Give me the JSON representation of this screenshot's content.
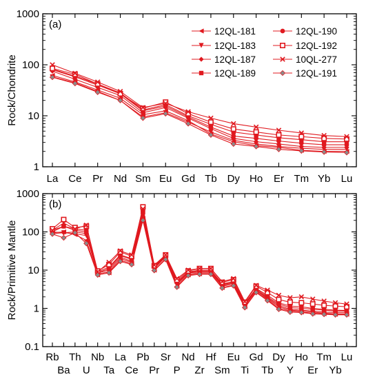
{
  "figure": {
    "chart_data": [
      {
        "type": "line",
        "panel_label": "(a)",
        "xlabel": "",
        "ylabel": "Rock/Chondrite",
        "yscale": "log",
        "ylim": [
          1,
          1000
        ],
        "yticks": [
          "1",
          "10",
          "100",
          "1000"
        ],
        "categories": [
          "La",
          "Ce",
          "Pr",
          "Nd",
          "Sm",
          "Eu",
          "Gd",
          "Tb",
          "Dy",
          "Ho",
          "Er",
          "Tm",
          "Yb",
          "Lu"
        ],
        "line_color": "#e0191f",
        "legend_position": "top-right",
        "series": [
          {
            "name": "12QL-181",
            "marker": "triangle-left",
            "values": [
              62,
              46,
              32,
              22,
              10.5,
              12.5,
              8.0,
              4.4,
              3.1,
              2.6,
              2.4,
              2.1,
              2.0,
              2.0
            ]
          },
          {
            "name": "12QL-183",
            "marker": "triangle-down",
            "values": [
              58,
              44,
              30,
              20,
              9.5,
              11.5,
              7.5,
              4.8,
              3.3,
              2.8,
              2.5,
              2.3,
              2.2,
              2.2
            ]
          },
          {
            "name": "12QL-187",
            "marker": "diamond",
            "values": [
              75,
              52,
              36,
              25,
              11.5,
              14.5,
              9.0,
              5.6,
              3.6,
              3.1,
              2.8,
              2.5,
              2.4,
              2.4
            ]
          },
          {
            "name": "12QL-189",
            "marker": "square",
            "values": [
              82,
              60,
              42,
              28,
              13,
              16.5,
              10.0,
              6.8,
              4.8,
              4.2,
              3.7,
              3.4,
              3.1,
              3.1
            ]
          },
          {
            "name": "12QL-190",
            "marker": "circle",
            "values": [
              80,
              58,
              40,
              27,
              12.5,
              15.5,
              9.5,
              6.0,
              4.0,
              3.6,
              3.2,
              2.9,
              2.7,
              2.7
            ]
          },
          {
            "name": "12QL-192",
            "marker": "square-open",
            "values": [
              85,
              65,
              42,
              27,
              14,
              18.5,
              11.0,
              7.5,
              5.5,
              4.8,
              4.2,
              3.9,
              3.6,
              3.5
            ]
          },
          {
            "name": "10QL-277",
            "marker": "x",
            "values": [
              100,
              68,
              46,
              30,
              14.5,
              17.5,
              12.0,
              9.0,
              7.0,
              6.0,
              5.2,
              4.6,
              4.1,
              3.9
            ]
          },
          {
            "name": "12QL-191",
            "marker": "diamond-gray",
            "values": [
              57,
              43,
              29,
              20,
              9.0,
              11.0,
              7.0,
              4.2,
              2.8,
              2.5,
              2.2,
              2.05,
              1.95,
              1.9
            ]
          }
        ]
      },
      {
        "type": "line",
        "panel_label": "(b)",
        "xlabel": "",
        "ylabel": "Rock/Primitive Mantle",
        "yscale": "log",
        "ylim": [
          0.1,
          1000
        ],
        "yticks": [
          "0.1",
          "1",
          "10",
          "100",
          "1000"
        ],
        "categories": [
          "Rb",
          "Ba",
          "Th",
          "U",
          "Nb",
          "Ta",
          "La",
          "Ce",
          "Pb",
          "Pr",
          "Sr",
          "P",
          "Nd",
          "Zr",
          "Hf",
          "Sm",
          "Eu",
          "Ti",
          "Gd",
          "Tb",
          "Dy",
          "Y",
          "Ho",
          "Er",
          "Tm",
          "Yb",
          "Lu"
        ],
        "line_color": "#e0191f",
        "series": [
          {
            "name": "12QL-181",
            "marker": "triangle-left",
            "values": [
              95,
              100,
              85,
              60,
              7.5,
              8.5,
              18,
              15,
              220,
              10,
              20,
              3.8,
              7.5,
              8.0,
              8.0,
              3.5,
              4.0,
              1.1,
              2.7,
              1.7,
              1.0,
              0.85,
              0.8,
              0.75,
              0.72,
              0.7,
              0.7
            ]
          },
          {
            "name": "12QL-183",
            "marker": "triangle-down",
            "values": [
              90,
              95,
              90,
              80,
              8.0,
              9.0,
              20,
              16,
              260,
              11,
              22,
              4.2,
              8.0,
              8.5,
              8.5,
              3.8,
              4.3,
              1.2,
              2.9,
              1.8,
              1.1,
              0.9,
              0.85,
              0.8,
              0.75,
              0.72,
              0.72
            ]
          },
          {
            "name": "12QL-187",
            "marker": "diamond",
            "values": [
              100,
              95,
              100,
              90,
              8.5,
              10,
              22,
              17,
              300,
              11.5,
              23,
              4.5,
              8.5,
              9.0,
              9.0,
              4.0,
              4.6,
              1.25,
              3.0,
              1.9,
              1.2,
              0.95,
              0.9,
              0.85,
              0.8,
              0.78,
              0.78
            ]
          },
          {
            "name": "12QL-189",
            "marker": "square",
            "values": [
              110,
              140,
              120,
              110,
              9.0,
              12,
              25,
              20,
              350,
              12.5,
              24,
              5.0,
              9.0,
              10,
              10,
              4.4,
              5.0,
              1.35,
              3.3,
              2.2,
              1.4,
              1.15,
              1.1,
              1.0,
              0.95,
              0.9,
              0.88
            ]
          },
          {
            "name": "12QL-190",
            "marker": "circle",
            "values": [
              100,
              140,
              110,
              100,
              8.5,
              11,
              24,
              19,
              330,
              12,
              23.5,
              4.8,
              8.8,
              9.5,
              9.5,
              4.2,
              4.8,
              1.3,
              3.2,
              2.0,
              1.3,
              1.05,
              1.0,
              0.95,
              0.9,
              0.85,
              0.85
            ]
          },
          {
            "name": "12QL-192",
            "marker": "square-open",
            "values": [
              120,
              210,
              130,
              140,
              9.5,
              14,
              30,
              23,
              450,
              13,
              25,
              5.5,
              9.5,
              11,
              11,
              4.8,
              5.6,
              1.45,
              3.8,
              2.6,
              1.7,
              1.45,
              1.4,
              1.3,
              1.2,
              1.15,
              1.1
            ]
          },
          {
            "name": "10QL-277",
            "marker": "x",
            "values": [
              110,
              170,
              120,
              150,
              9.0,
              16,
              32,
              25,
              400,
              13.5,
              25,
              6.0,
              10,
              11,
              11,
              5.0,
              6.0,
              1.5,
              4.0,
              3.0,
              2.2,
              1.9,
              2.0,
              1.75,
              1.55,
              1.4,
              1.3
            ]
          },
          {
            "name": "12QL-191",
            "marker": "diamond-gray",
            "values": [
              88,
              70,
              95,
              50,
              7.5,
              8.5,
              17,
              14,
              200,
              9.8,
              19,
              3.6,
              7.2,
              7.8,
              7.8,
              3.4,
              3.9,
              1.05,
              2.6,
              1.6,
              0.95,
              0.8,
              0.78,
              0.72,
              0.7,
              0.68,
              0.68
            ]
          }
        ]
      }
    ]
  }
}
